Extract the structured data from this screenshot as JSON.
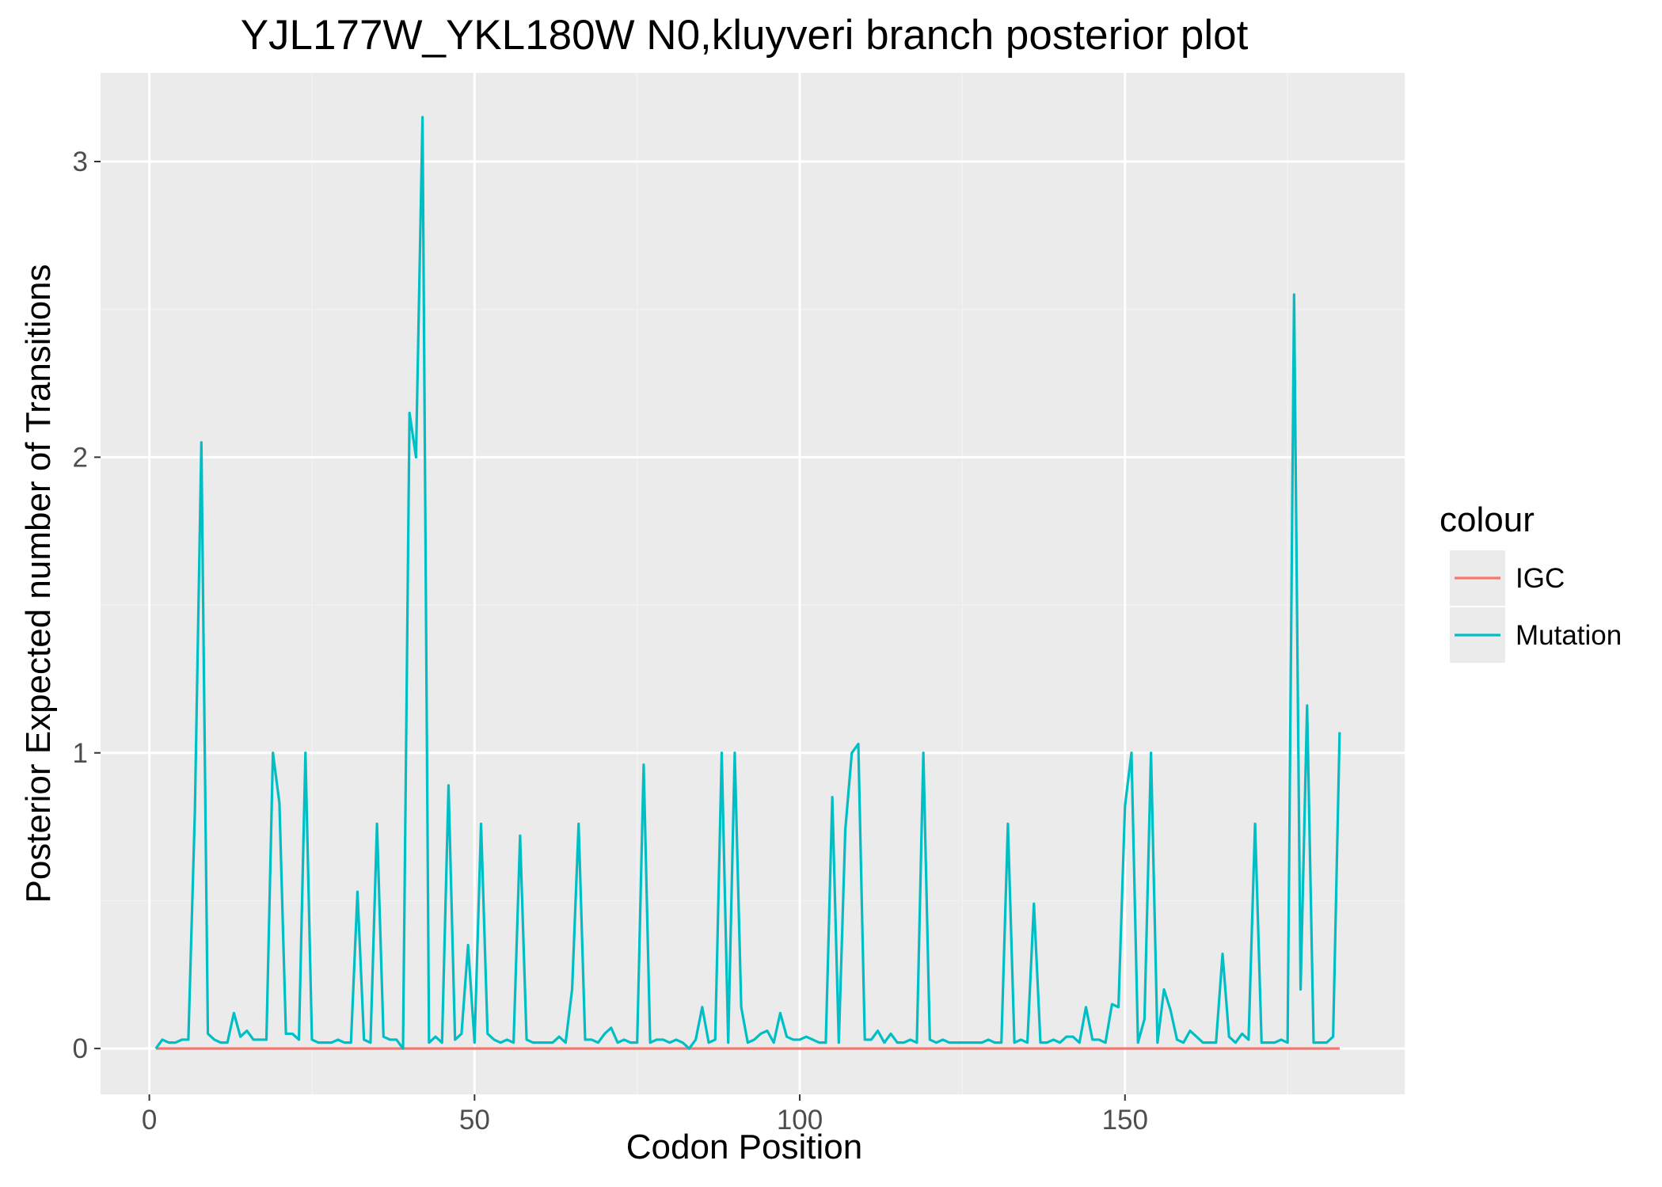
{
  "chart_data": {
    "type": "line",
    "title": "YJL177W_YKL180W N0,kluyveri branch posterior plot",
    "xlabel": "Codon Position",
    "ylabel": "Posterior Expected number of Transitions",
    "xlim": [
      -7.5,
      193
    ],
    "ylim": [
      -0.155,
      3.3
    ],
    "x_ticks": [
      0,
      50,
      100,
      150
    ],
    "y_ticks": [
      0,
      1,
      2,
      3
    ],
    "grid": true,
    "legend": {
      "title": "colour",
      "position": "right"
    },
    "series": [
      {
        "name": "IGC",
        "color": "#f8766d",
        "x": [
          1,
          183
        ],
        "y": [
          0,
          0
        ]
      },
      {
        "name": "Mutation",
        "color": "#00bfc4",
        "x": [
          1,
          2,
          3,
          4,
          5,
          6,
          7,
          8,
          9,
          10,
          11,
          12,
          13,
          14,
          15,
          16,
          17,
          18,
          19,
          20,
          21,
          22,
          23,
          24,
          25,
          26,
          27,
          28,
          29,
          30,
          31,
          32,
          33,
          34,
          35,
          36,
          37,
          38,
          39,
          40,
          41,
          42,
          43,
          44,
          45,
          46,
          47,
          48,
          49,
          50,
          51,
          52,
          53,
          54,
          55,
          56,
          57,
          58,
          59,
          60,
          61,
          62,
          63,
          64,
          65,
          66,
          67,
          68,
          69,
          70,
          71,
          72,
          73,
          74,
          75,
          76,
          77,
          78,
          79,
          80,
          81,
          82,
          83,
          84,
          85,
          86,
          87,
          88,
          89,
          90,
          91,
          92,
          93,
          94,
          95,
          96,
          97,
          98,
          99,
          100,
          101,
          102,
          103,
          104,
          105,
          106,
          107,
          108,
          109,
          110,
          111,
          112,
          113,
          114,
          115,
          116,
          117,
          118,
          119,
          120,
          121,
          122,
          123,
          124,
          125,
          126,
          127,
          128,
          129,
          130,
          131,
          132,
          133,
          134,
          135,
          136,
          137,
          138,
          139,
          140,
          141,
          142,
          143,
          144,
          145,
          146,
          147,
          148,
          149,
          150,
          151,
          152,
          153,
          154,
          155,
          156,
          157,
          158,
          159,
          160,
          161,
          162,
          163,
          164,
          165,
          166,
          167,
          168,
          169,
          170,
          171,
          172,
          173,
          174,
          175,
          176,
          177,
          178,
          179,
          180,
          181,
          182,
          183
        ],
        "y": [
          0.0,
          0.03,
          0.02,
          0.02,
          0.03,
          0.03,
          0.8,
          2.05,
          0.05,
          0.03,
          0.02,
          0.02,
          0.12,
          0.04,
          0.06,
          0.03,
          0.03,
          0.03,
          1.0,
          0.83,
          0.05,
          0.05,
          0.03,
          1.0,
          0.03,
          0.02,
          0.02,
          0.02,
          0.03,
          0.02,
          0.02,
          0.53,
          0.03,
          0.02,
          0.76,
          0.04,
          0.03,
          0.03,
          0.0,
          2.15,
          2.0,
          3.15,
          0.02,
          0.04,
          0.02,
          0.89,
          0.03,
          0.05,
          0.35,
          0.02,
          0.76,
          0.05,
          0.03,
          0.02,
          0.03,
          0.02,
          0.72,
          0.03,
          0.02,
          0.02,
          0.02,
          0.02,
          0.04,
          0.02,
          0.2,
          0.76,
          0.03,
          0.03,
          0.02,
          0.05,
          0.07,
          0.02,
          0.03,
          0.02,
          0.02,
          0.96,
          0.02,
          0.03,
          0.03,
          0.02,
          0.03,
          0.02,
          0.0,
          0.03,
          0.14,
          0.02,
          0.03,
          1.0,
          0.02,
          1.0,
          0.14,
          0.02,
          0.03,
          0.05,
          0.06,
          0.02,
          0.12,
          0.04,
          0.03,
          0.03,
          0.04,
          0.03,
          0.02,
          0.02,
          0.85,
          0.02,
          0.74,
          1.0,
          1.03,
          0.03,
          0.03,
          0.06,
          0.02,
          0.05,
          0.02,
          0.02,
          0.03,
          0.02,
          1.0,
          0.03,
          0.02,
          0.03,
          0.02,
          0.02,
          0.02,
          0.02,
          0.02,
          0.02,
          0.03,
          0.02,
          0.02,
          0.76,
          0.02,
          0.03,
          0.02,
          0.49,
          0.02,
          0.02,
          0.03,
          0.02,
          0.04,
          0.04,
          0.02,
          0.14,
          0.03,
          0.03,
          0.02,
          0.15,
          0.14,
          0.82,
          1.0,
          0.02,
          0.1,
          1.0,
          0.02,
          0.2,
          0.13,
          0.03,
          0.02,
          0.06,
          0.04,
          0.02,
          0.02,
          0.02,
          0.32,
          0.04,
          0.02,
          0.05,
          0.03,
          0.76,
          0.02,
          0.02,
          0.02,
          0.03,
          0.02,
          2.55,
          0.2,
          1.16,
          0.02,
          0.02,
          0.02,
          0.04,
          1.07
        ]
      }
    ]
  }
}
